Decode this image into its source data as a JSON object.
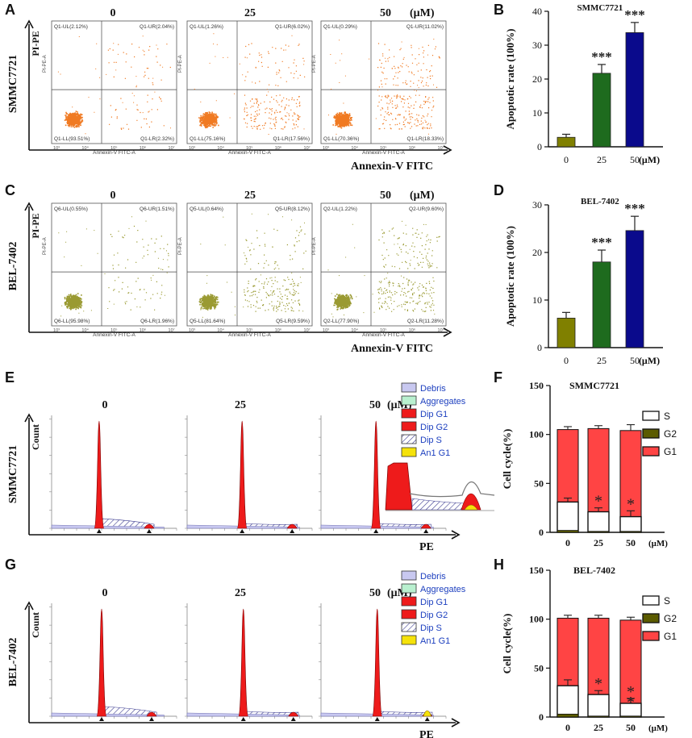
{
  "panels": {
    "A": "A",
    "B": "B",
    "C": "C",
    "D": "D",
    "E": "E",
    "F": "F",
    "G": "G",
    "H": "H"
  },
  "flow": [
    {
      "id": "A",
      "row_label": "SMMC7721",
      "y_axis_label": "PI-PE",
      "x_axis_label": "Annexin-V FITC",
      "concentrations": [
        "0",
        "25",
        "50"
      ],
      "unit": "(μM)",
      "dot_color": "#f07a22",
      "sub_x_label": "Annexin-V FITC-A",
      "sub_y_label": "PI-PE-A",
      "plots": [
        {
          "UL": "Q1-UL(2.12%)",
          "UR": "Q1-UR(2.04%)",
          "LL": "Q1-LL(93.51%)",
          "LR": "Q1-LR(2.32%)"
        },
        {
          "UL": "Q1-UL(1.26%)",
          "UR": "Q1-UR(6.02%)",
          "LL": "Q1-LL(75.16%)",
          "LR": "Q1-LR(17.56%)"
        },
        {
          "UL": "Q1-UL(0.29%)",
          "UR": "Q1-UR(11.02%)",
          "LL": "Q1-LL(70.36%)",
          "LR": "Q1-LR(18.33%)"
        }
      ]
    },
    {
      "id": "C",
      "row_label": "BEL-7402",
      "y_axis_label": "PI-PE",
      "x_axis_label": "Annexin-V FITC",
      "concentrations": [
        "0",
        "25",
        "50"
      ],
      "unit": "(μM)",
      "dot_color": "#9a9a32",
      "sub_x_label": "Annexin-V FITC-A",
      "sub_y_label": "PI-PE-A",
      "plots": [
        {
          "UL": "Q6-UL(0.55%)",
          "UR": "Q6-UR(1.51%)",
          "LL": "Q6-LL(95.98%)",
          "LR": "Q6-LR(1.96%)"
        },
        {
          "UL": "Q5-UL(0.64%)",
          "UR": "Q5-UR(8.12%)",
          "LL": "Q5-LL(81.64%)",
          "LR": "Q5-LR(9.59%)"
        },
        {
          "UL": "Q2-UL(1.22%)",
          "UR": "Q2-UR(9.60%)",
          "LL": "Q2-LL(77.90%)",
          "LR": "Q2-LR(11.28%)"
        }
      ]
    }
  ],
  "cycle": [
    {
      "id": "E",
      "row_label": "SMMC7721",
      "y_axis_label": "Count",
      "x_axis_label": "PE",
      "concentrations": [
        "0",
        "25",
        "50"
      ],
      "unit": "(μM)",
      "legend": [
        {
          "label": "Debris",
          "color": "#c8c8f0"
        },
        {
          "label": "Aggregates",
          "color": "#b9f0cf"
        },
        {
          "label": "Dip G1",
          "color": "#ee1b1b"
        },
        {
          "label": "Dip G2",
          "color": "#ee1b1b"
        },
        {
          "label": "Dip S",
          "color": "#ffffff"
        },
        {
          "label": "An1 G1",
          "color": "#f5e20a"
        }
      ]
    },
    {
      "id": "G",
      "row_label": "BEL-7402",
      "y_axis_label": "Count",
      "x_axis_label": "PE",
      "concentrations": [
        "0",
        "25",
        "50"
      ],
      "unit": "(μM)",
      "legend": [
        {
          "label": "Debris",
          "color": "#c8c8f0"
        },
        {
          "label": "Aggregates",
          "color": "#b9f0cf"
        },
        {
          "label": "Dip G1",
          "color": "#ee1b1b"
        },
        {
          "label": "Dip G2",
          "color": "#ee1b1b"
        },
        {
          "label": "Dip S",
          "color": "#ffffff"
        },
        {
          "label": "An1 G1",
          "color": "#f5e20a"
        }
      ]
    }
  ],
  "chart_data": [
    {
      "id": "B",
      "type": "bar",
      "title": "SMMC7721",
      "ylabel": "Apoptotic rate (100%)",
      "xlabel": "",
      "unit_label": "(μM)",
      "categories": [
        "0",
        "25",
        "50"
      ],
      "values": [
        2.8,
        21.7,
        33.7
      ],
      "errors": [
        0.9,
        2.6,
        3.0
      ],
      "colors": [
        "#808000",
        "#1e6b1e",
        "#0a0a8c"
      ],
      "significance": [
        "",
        "***",
        "***"
      ],
      "ylim": [
        0,
        40
      ],
      "yticks": [
        0,
        10,
        20,
        30,
        40
      ]
    },
    {
      "id": "D",
      "type": "bar",
      "title": "BEL-7402",
      "ylabel": "Apoptotic rate (100%)",
      "xlabel": "",
      "unit_label": "(μM)",
      "categories": [
        "0",
        "25",
        "50"
      ],
      "values": [
        6.2,
        18.0,
        24.6
      ],
      "errors": [
        1.2,
        2.5,
        3.0
      ],
      "colors": [
        "#808000",
        "#1e6b1e",
        "#0a0a8c"
      ],
      "significance": [
        "",
        "***",
        "***"
      ],
      "ylim": [
        0,
        30
      ],
      "yticks": [
        0,
        10,
        20,
        30
      ]
    },
    {
      "id": "F",
      "type": "bar",
      "stacked": true,
      "title": "SMMC7721",
      "ylabel": "Cell cycle(%)",
      "unit_label": "(μM)",
      "categories": [
        "0",
        "25",
        "50"
      ],
      "series": [
        {
          "name": "G1",
          "color": "#ff4444",
          "values": [
            72,
            84,
            87
          ]
        },
        {
          "name": "G2",
          "color": "#5b5b00",
          "values": [
            2,
            1,
            1
          ]
        },
        {
          "name": "S",
          "color": "#ffffff",
          "values": [
            31,
            21,
            16
          ]
        }
      ],
      "s_errors": [
        4,
        4,
        6
      ],
      "total_errors": [
        3,
        3,
        6
      ],
      "significance": [
        "",
        "*",
        "*"
      ],
      "ylim": [
        0,
        150
      ],
      "yticks": [
        0,
        50,
        100,
        150
      ]
    },
    {
      "id": "H",
      "type": "bar",
      "stacked": true,
      "title": "BEL-7402",
      "ylabel": "Cell cycle(%)",
      "unit_label": "(μM)",
      "categories": [
        "0",
        "25",
        "50"
      ],
      "series": [
        {
          "name": "G1",
          "color": "#ff4444",
          "values": [
            66,
            77,
            84
          ]
        },
        {
          "name": "G2",
          "color": "#5b5b00",
          "values": [
            3,
            1,
            1
          ]
        },
        {
          "name": "S",
          "color": "#ffffff",
          "values": [
            32,
            23,
            14
          ]
        }
      ],
      "s_errors": [
        6,
        4,
        5
      ],
      "total_errors": [
        3,
        3,
        3
      ],
      "significance": [
        "",
        "*",
        "**"
      ],
      "ylim": [
        0,
        150
      ],
      "yticks": [
        0,
        50,
        100,
        150
      ]
    }
  ]
}
